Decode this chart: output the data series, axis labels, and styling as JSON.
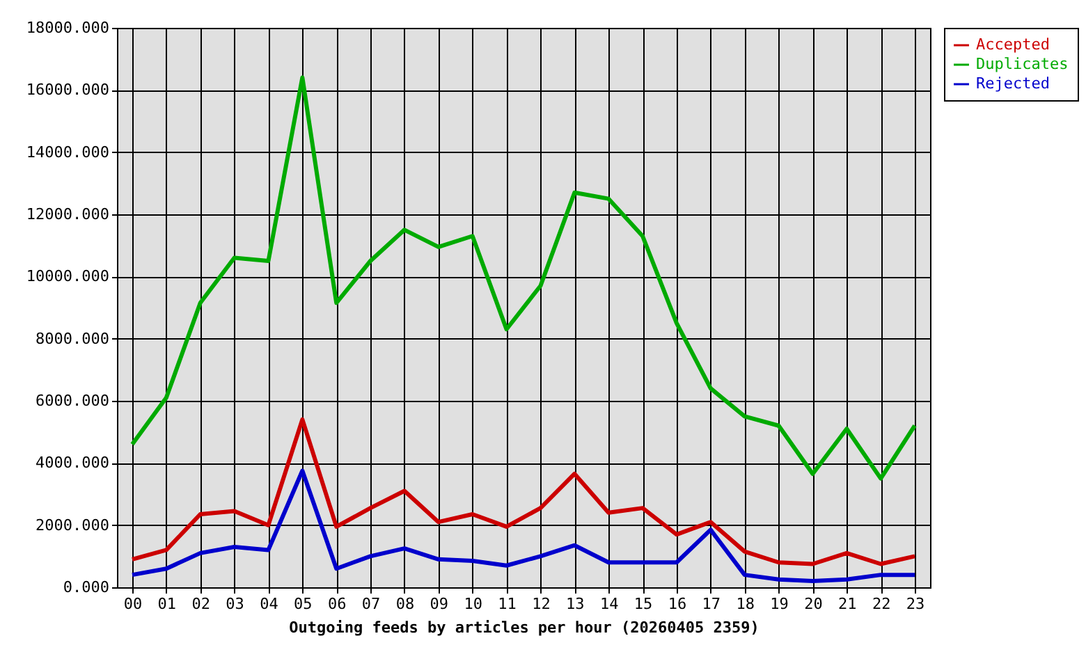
{
  "chart_data": {
    "type": "line",
    "xlabel": "Outgoing feeds by articles per hour (20260405 2359)",
    "categories": [
      "00",
      "01",
      "02",
      "03",
      "04",
      "05",
      "06",
      "07",
      "08",
      "09",
      "10",
      "11",
      "12",
      "13",
      "14",
      "15",
      "16",
      "17",
      "18",
      "19",
      "20",
      "21",
      "22",
      "23"
    ],
    "series": [
      {
        "name": "Accepted",
        "color": "#cc0000",
        "values": [
          900,
          1200,
          2350,
          2450,
          2000,
          5400,
          1950,
          2550,
          3100,
          2100,
          2350,
          1950,
          2550,
          3650,
          2400,
          2550,
          1700,
          2100,
          1150,
          800,
          750,
          1100,
          750,
          1000
        ]
      },
      {
        "name": "Duplicates",
        "color": "#00aa00",
        "values": [
          4600,
          6100,
          9150,
          10600,
          10500,
          16400,
          9150,
          10500,
          11500,
          10950,
          11300,
          8300,
          9700,
          12700,
          12500,
          11300,
          8500,
          6400,
          5500,
          5200,
          3650,
          5100,
          3500,
          5200
        ]
      },
      {
        "name": "Rejected",
        "color": "#0000cc",
        "values": [
          400,
          600,
          1100,
          1300,
          1200,
          3750,
          600,
          1000,
          1250,
          900,
          850,
          700,
          1000,
          1350,
          800,
          800,
          800,
          1850,
          400,
          250,
          200,
          250,
          400,
          400
        ]
      }
    ],
    "ylim": [
      0,
      18000
    ],
    "yticks": [
      {
        "value": 0,
        "label": "0.000"
      },
      {
        "value": 2000,
        "label": "2000.000"
      },
      {
        "value": 4000,
        "label": "4000.000"
      },
      {
        "value": 6000,
        "label": "6000.000"
      },
      {
        "value": 8000,
        "label": "8000.000"
      },
      {
        "value": 10000,
        "label": "10000.000"
      },
      {
        "value": 12000,
        "label": "12000.000"
      },
      {
        "value": 14000,
        "label": "14000.000"
      },
      {
        "value": 16000,
        "label": "16000.000"
      },
      {
        "value": 18000,
        "label": "18000.000"
      }
    ],
    "grid": true,
    "legend": "top right"
  }
}
